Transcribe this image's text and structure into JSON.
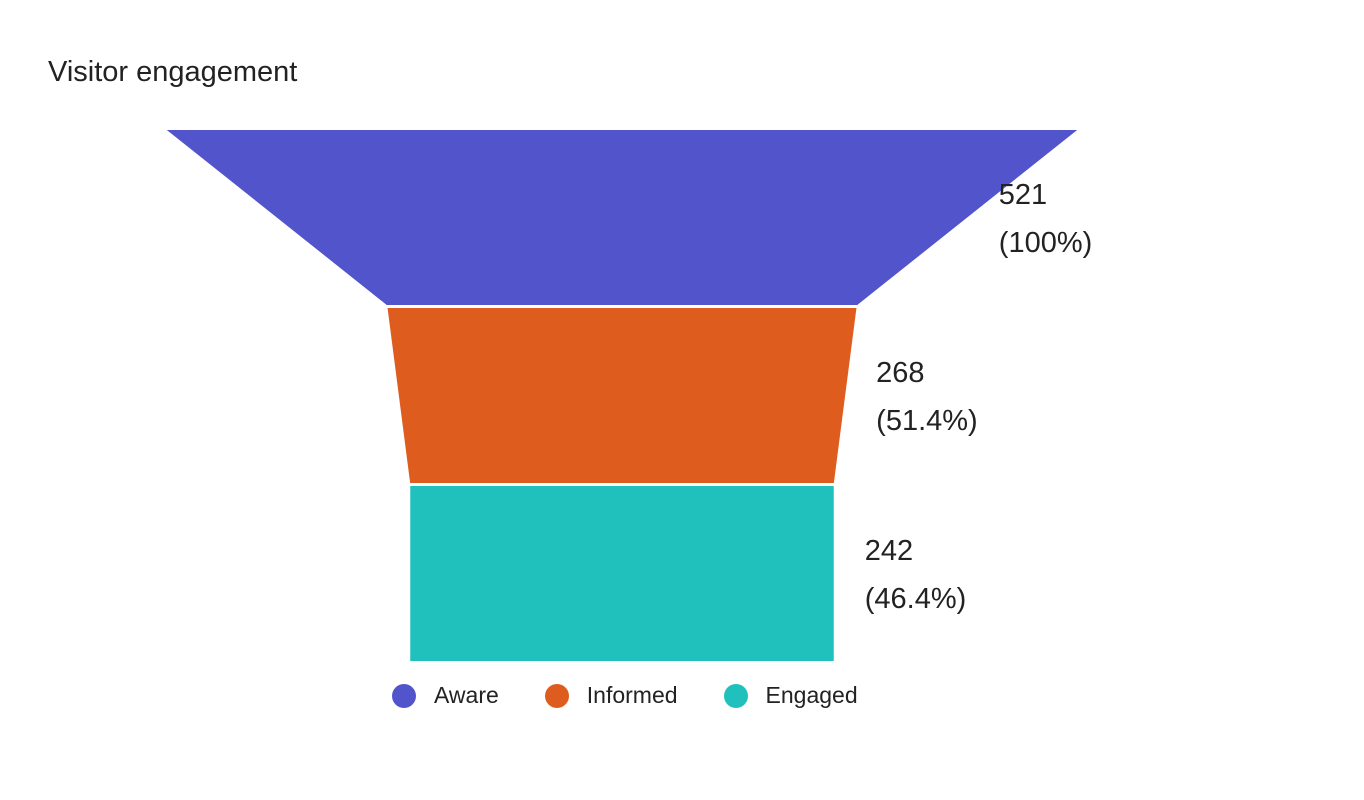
{
  "chart_data": {
    "type": "funnel",
    "title": "Visitor engagement",
    "stages": [
      {
        "name": "Aware",
        "value": 521,
        "percent_label": "(100%)",
        "color": "#5254cc"
      },
      {
        "name": "Informed",
        "value": 268,
        "percent_label": "(51.4%)",
        "color": "#de5c1e"
      },
      {
        "name": "Engaged",
        "value": 242,
        "percent_label": "(46.4%)",
        "color": "#20c0bd"
      }
    ],
    "legend_position": "bottom"
  }
}
